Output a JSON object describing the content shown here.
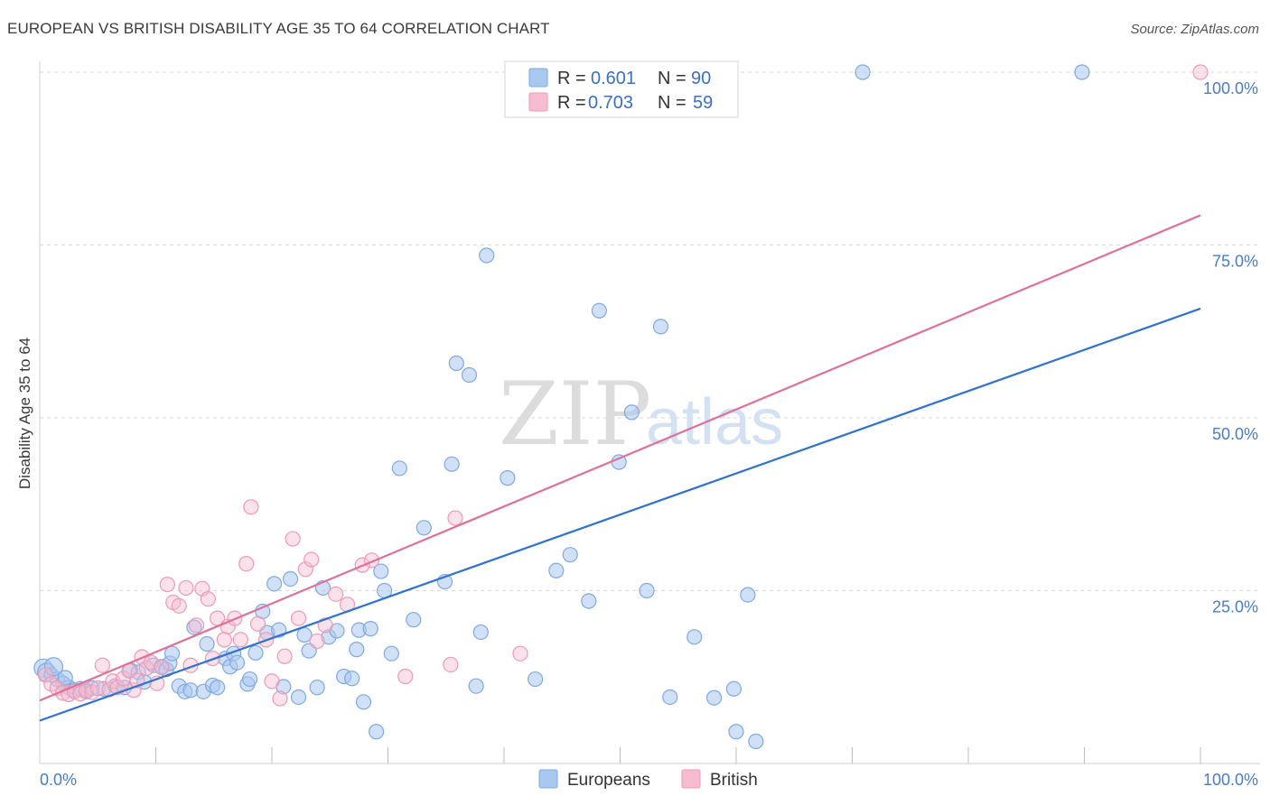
{
  "header": {
    "title": "EUROPEAN VS BRITISH DISABILITY AGE 35 TO 64 CORRELATION CHART",
    "source": "Source: ZipAtlas.com"
  },
  "watermark": {
    "zip": "ZIP",
    "atlas": "atlas"
  },
  "colors": {
    "europeans_fill": "#a9c8f0",
    "europeans_stroke": "#7fa9e0",
    "europeans_line": "#2f72d0",
    "british_fill": "#f7bcd0",
    "british_stroke": "#ec9ab6",
    "british_line": "#e0709a",
    "tick_text": "#4a7cc7",
    "grid": "#d9d9d9"
  },
  "legend": {
    "rows": [
      {
        "r_label": "R =",
        "r_value": "0.601",
        "n_label": "N =",
        "n_value": "90"
      },
      {
        "r_label": "R =",
        "r_value": "0.703",
        "n_label": "N =",
        "n_value": "59"
      }
    ],
    "bottom": [
      "Europeans",
      "British"
    ]
  },
  "chart_data": {
    "type": "scatter",
    "title": "EUROPEAN VS BRITISH DISABILITY AGE 35 TO 64 CORRELATION CHART",
    "xlabel": "",
    "ylabel": "Disability Age 35 to 64",
    "xlim": [
      0,
      100
    ],
    "ylim": [
      0,
      100
    ],
    "x_tick_labels": [
      "0.0%",
      "100.0%"
    ],
    "y_tick_values": [
      25,
      50,
      75,
      100
    ],
    "y_tick_labels": [
      "25.0%",
      "50.0%",
      "75.0%",
      "100.0%"
    ],
    "grid": true,
    "legend_position": "top-center",
    "series": [
      {
        "name": "Europeans",
        "r": 0.601,
        "n": 90,
        "trend": [
          [
            0,
            6.2
          ],
          [
            100,
            65.8
          ]
        ],
        "points": [
          [
            0.3,
            13.8
          ],
          [
            0.6,
            13.2
          ],
          [
            1.0,
            12.8
          ],
          [
            1.5,
            12.2
          ],
          [
            2.0,
            11.6
          ],
          [
            2.5,
            11.0
          ],
          [
            3.0,
            10.6
          ],
          [
            3.5,
            10.8
          ],
          [
            4.0,
            10.4
          ],
          [
            4.5,
            10.9
          ],
          [
            1.2,
            14.0
          ],
          [
            2.2,
            12.4
          ],
          [
            5.5,
            10.8
          ],
          [
            6.5,
            11.2
          ],
          [
            7.3,
            11.0
          ],
          [
            7.8,
            13.5
          ],
          [
            8.5,
            13.2
          ],
          [
            9.0,
            11.8
          ],
          [
            9.8,
            14.2
          ],
          [
            10.5,
            14.0
          ],
          [
            10.9,
            13.6
          ],
          [
            11.2,
            14.5
          ],
          [
            11.4,
            15.9
          ],
          [
            12.0,
            11.2
          ],
          [
            12.5,
            10.4
          ],
          [
            13.0,
            10.6
          ],
          [
            13.3,
            19.7
          ],
          [
            14.1,
            10.4
          ],
          [
            14.4,
            17.3
          ],
          [
            14.9,
            11.3
          ],
          [
            15.3,
            11.0
          ],
          [
            16.0,
            15.2
          ],
          [
            16.4,
            14.0
          ],
          [
            16.7,
            15.9
          ],
          [
            17.0,
            14.6
          ],
          [
            17.9,
            11.5
          ],
          [
            18.1,
            12.2
          ],
          [
            18.6,
            16.0
          ],
          [
            19.2,
            22.0
          ],
          [
            19.6,
            18.9
          ],
          [
            20.2,
            26.0
          ],
          [
            20.6,
            19.3
          ],
          [
            21.0,
            11.1
          ],
          [
            21.6,
            26.7
          ],
          [
            22.3,
            9.6
          ],
          [
            22.8,
            18.6
          ],
          [
            23.2,
            16.3
          ],
          [
            23.9,
            11.0
          ],
          [
            24.4,
            25.4
          ],
          [
            24.9,
            18.3
          ],
          [
            25.6,
            19.2
          ],
          [
            26.2,
            12.6
          ],
          [
            26.9,
            12.3
          ],
          [
            27.3,
            16.5
          ],
          [
            27.5,
            19.3
          ],
          [
            27.9,
            8.9
          ],
          [
            28.5,
            19.5
          ],
          [
            29.0,
            4.6
          ],
          [
            29.4,
            27.8
          ],
          [
            29.7,
            25.0
          ],
          [
            30.3,
            15.9
          ],
          [
            31.0,
            42.7
          ],
          [
            32.2,
            20.8
          ],
          [
            33.1,
            34.1
          ],
          [
            34.9,
            26.3
          ],
          [
            35.5,
            43.3
          ],
          [
            35.9,
            57.9
          ],
          [
            37.0,
            56.2
          ],
          [
            37.6,
            11.2
          ],
          [
            38.0,
            19.0
          ],
          [
            38.5,
            73.5
          ],
          [
            40.3,
            41.3
          ],
          [
            42.7,
            12.2
          ],
          [
            44.5,
            27.9
          ],
          [
            45.7,
            30.2
          ],
          [
            47.3,
            23.5
          ],
          [
            48.2,
            65.5
          ],
          [
            49.9,
            43.6
          ],
          [
            51.0,
            50.8
          ],
          [
            52.3,
            25.0
          ],
          [
            53.5,
            63.2
          ],
          [
            54.3,
            9.6
          ],
          [
            56.4,
            18.3
          ],
          [
            58.1,
            9.5
          ],
          [
            60.0,
            4.6
          ],
          [
            61.0,
            24.4
          ],
          [
            61.7,
            3.2
          ],
          [
            59.8,
            10.8
          ],
          [
            70.9,
            100.0
          ],
          [
            89.8,
            100.0
          ]
        ]
      },
      {
        "name": "British",
        "r": 0.703,
        "n": 59,
        "trend": [
          [
            0,
            9.1
          ],
          [
            100,
            79.3
          ]
        ],
        "points": [
          [
            0.5,
            12.8
          ],
          [
            1.0,
            11.5
          ],
          [
            1.5,
            10.9
          ],
          [
            2.0,
            10.2
          ],
          [
            2.5,
            10.0
          ],
          [
            3.0,
            10.4
          ],
          [
            3.5,
            10.1
          ],
          [
            4.0,
            10.6
          ],
          [
            4.5,
            10.3
          ],
          [
            5.0,
            10.9
          ],
          [
            5.4,
            14.2
          ],
          [
            6.0,
            10.7
          ],
          [
            6.3,
            11.9
          ],
          [
            6.7,
            11.0
          ],
          [
            7.2,
            12.3
          ],
          [
            7.7,
            13.4
          ],
          [
            8.1,
            10.6
          ],
          [
            8.4,
            12.0
          ],
          [
            8.8,
            15.4
          ],
          [
            9.2,
            13.8
          ],
          [
            9.6,
            14.6
          ],
          [
            10.1,
            11.6
          ],
          [
            10.5,
            13.9
          ],
          [
            11.0,
            25.9
          ],
          [
            11.5,
            23.3
          ],
          [
            12.0,
            22.8
          ],
          [
            12.6,
            25.4
          ],
          [
            13.0,
            14.2
          ],
          [
            13.5,
            20.0
          ],
          [
            14.0,
            25.3
          ],
          [
            14.5,
            23.8
          ],
          [
            14.9,
            15.2
          ],
          [
            15.3,
            21.0
          ],
          [
            15.9,
            17.9
          ],
          [
            16.2,
            19.8
          ],
          [
            16.8,
            21.0
          ],
          [
            17.3,
            17.9
          ],
          [
            17.8,
            28.9
          ],
          [
            18.2,
            37.1
          ],
          [
            18.8,
            20.2
          ],
          [
            19.5,
            17.9
          ],
          [
            20.0,
            11.9
          ],
          [
            20.7,
            9.4
          ],
          [
            21.1,
            15.5
          ],
          [
            21.8,
            32.5
          ],
          [
            22.3,
            21.0
          ],
          [
            22.9,
            28.1
          ],
          [
            23.4,
            29.5
          ],
          [
            23.9,
            17.7
          ],
          [
            24.6,
            20.0
          ],
          [
            25.5,
            24.5
          ],
          [
            26.5,
            23.0
          ],
          [
            27.8,
            28.7
          ],
          [
            28.6,
            29.4
          ],
          [
            31.5,
            12.6
          ],
          [
            35.4,
            14.3
          ],
          [
            35.8,
            35.5
          ],
          [
            41.4,
            15.9
          ],
          [
            100.0,
            100.0
          ]
        ]
      }
    ]
  }
}
